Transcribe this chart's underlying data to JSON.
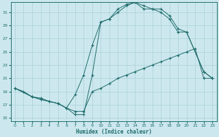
{
  "xlabel": "Humidex (Indice chaleur)",
  "bg_color": "#cce8ee",
  "grid_color": "#aacfd8",
  "line_color": "#1e6b6b",
  "xlim": [
    -0.5,
    23.5
  ],
  "ylim": [
    14.5,
    32.5
  ],
  "yticks": [
    15,
    17,
    19,
    21,
    23,
    25,
    27,
    29,
    31
  ],
  "xticks": [
    0,
    1,
    2,
    3,
    4,
    5,
    6,
    7,
    8,
    9,
    10,
    11,
    12,
    13,
    14,
    15,
    16,
    17,
    18,
    19,
    20,
    21,
    22,
    23
  ],
  "line1_x": [
    0,
    1,
    2,
    3,
    4,
    5,
    6,
    7,
    8,
    9,
    10,
    11,
    12,
    13,
    14,
    15,
    16,
    17,
    18,
    19,
    20,
    21,
    22,
    23
  ],
  "line1_y": [
    19.5,
    19.0,
    18.2,
    18.0,
    17.5,
    17.2,
    16.5,
    16.0,
    16.0,
    19.0,
    19.5,
    20.2,
    21.0,
    21.5,
    22.0,
    22.5,
    23.0,
    23.5,
    24.0,
    24.5,
    25.0,
    25.5,
    21.0,
    21.0
  ],
  "line2_x": [
    0,
    2,
    3,
    4,
    5,
    6,
    7,
    8,
    9,
    10,
    11,
    12,
    13,
    14,
    15,
    16,
    17,
    18,
    19,
    20,
    22,
    23
  ],
  "line2_y": [
    19.5,
    18.2,
    17.8,
    17.5,
    17.2,
    16.5,
    18.5,
    21.5,
    26.0,
    29.5,
    30.0,
    31.0,
    32.0,
    32.5,
    31.5,
    31.5,
    31.0,
    30.0,
    28.0,
    28.0,
    22.0,
    21.0
  ],
  "line3_x": [
    0,
    2,
    3,
    4,
    5,
    6,
    7,
    8,
    9,
    10,
    11,
    12,
    13,
    14,
    15,
    16,
    17,
    18,
    19,
    20,
    22,
    23
  ],
  "line3_y": [
    19.5,
    18.2,
    17.8,
    17.5,
    17.2,
    16.5,
    15.5,
    15.5,
    21.5,
    29.5,
    30.0,
    31.5,
    32.2,
    32.5,
    32.0,
    31.5,
    31.5,
    30.5,
    28.5,
    28.0,
    22.0,
    21.0
  ]
}
